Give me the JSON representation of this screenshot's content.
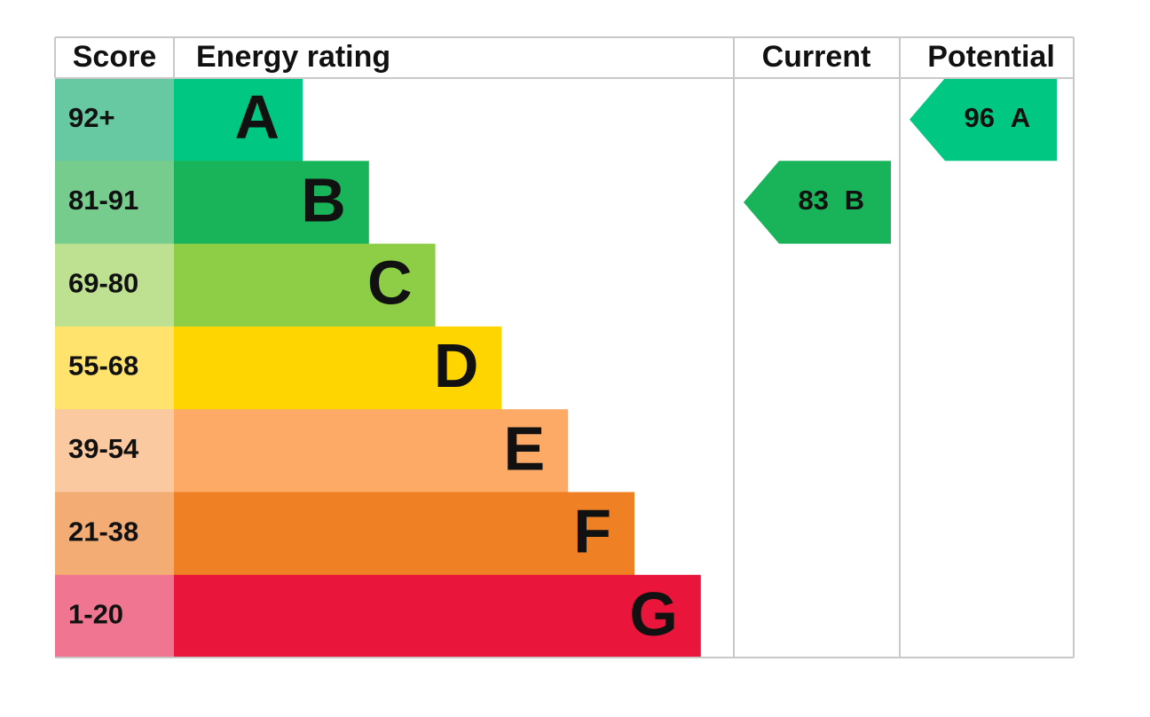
{
  "header": {
    "score": "Score",
    "rating": "Energy rating",
    "current": "Current",
    "potential": "Potential"
  },
  "bands": [
    {
      "score": "92+",
      "letter": "A",
      "color": "#00c781",
      "score_color": "#66c9a2"
    },
    {
      "score": "81-91",
      "letter": "B",
      "color": "#19b459",
      "score_color": "#75cc8c"
    },
    {
      "score": "69-80",
      "letter": "C",
      "color": "#8dce46",
      "score_color": "#bde190"
    },
    {
      "score": "55-68",
      "letter": "D",
      "color": "#ffd500",
      "score_color": "#ffe36c"
    },
    {
      "score": "39-54",
      "letter": "E",
      "color": "#fcaa65",
      "score_color": "#fbc9a0"
    },
    {
      "score": "21-38",
      "letter": "F",
      "color": "#ef8023",
      "score_color": "#f3ad74"
    },
    {
      "score": "1-20",
      "letter": "G",
      "color": "#e9153b",
      "score_color": "#ef7590"
    }
  ],
  "current": {
    "value": 83,
    "rating": "B"
  },
  "potential": {
    "value": 96,
    "rating": "A"
  }
}
